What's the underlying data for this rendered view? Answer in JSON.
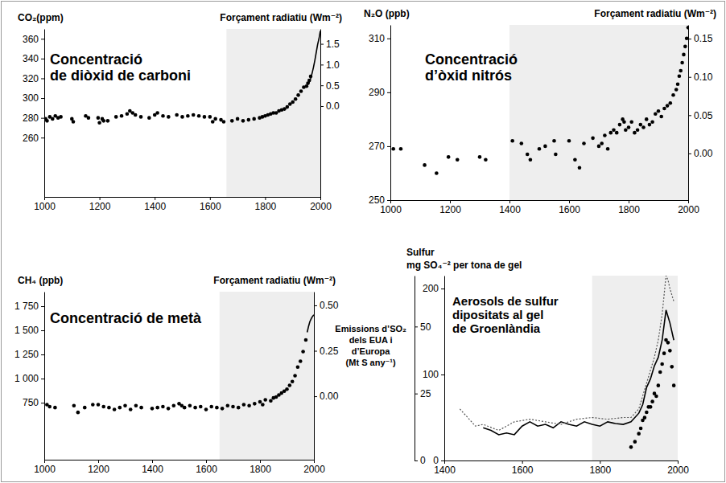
{
  "chart_data": [
    {
      "type": "scatter",
      "title": "Concentració\nde diòxid de carboni",
      "ylabel": "CO₂(ppm)",
      "y2label": "Forçament radiatiu (Wm⁻²)",
      "xlim": [
        1000,
        2000
      ],
      "xticks": [
        1000,
        1200,
        1400,
        1600,
        1800,
        2000
      ],
      "ylim": [
        200,
        370
      ],
      "yticks": [
        260,
        280,
        300,
        320,
        340,
        360
      ],
      "y2lim": [
        -2.19,
        1.86
      ],
      "y2ticks": [
        {
          "value": 0,
          "label": "0.0"
        },
        {
          "value": 0.5,
          "label": "0.5"
        },
        {
          "value": 1,
          "label": "1.0"
        },
        {
          "value": 1.5,
          "label": "1.5"
        }
      ],
      "series": [
        {
          "type": "scatter",
          "marker": "circle",
          "color": "#000000",
          "x": [
            1005,
            1010,
            1020,
            1030,
            1040,
            1050,
            1060,
            1100,
            1105,
            1150,
            1160,
            1195,
            1200,
            1210,
            1215,
            1230,
            1260,
            1280,
            1300,
            1310,
            1320,
            1330,
            1350,
            1380,
            1400,
            1410,
            1430,
            1450,
            1480,
            1500,
            1520,
            1540,
            1560,
            1580,
            1600,
            1610,
            1620,
            1640,
            1650,
            1680,
            1700,
            1720,
            1740,
            1760,
            1780,
            1790,
            1800,
            1810,
            1820,
            1830,
            1840,
            1850,
            1860,
            1870,
            1880,
            1890,
            1900,
            1910,
            1920,
            1930,
            1940,
            1950,
            1955,
            1960,
            1965
          ],
          "values": [
            279,
            277,
            281,
            279,
            282,
            280,
            281,
            279,
            276,
            282,
            280,
            280,
            275,
            279,
            277,
            277,
            281,
            282,
            284,
            287,
            285,
            283,
            281,
            280,
            283,
            285,
            282,
            281,
            283,
            281,
            282,
            283,
            282,
            281,
            281,
            276,
            279,
            278,
            276,
            277,
            279,
            277,
            278,
            279,
            280,
            281,
            282,
            283,
            284,
            285,
            285,
            287,
            288,
            289,
            291,
            294,
            296,
            299,
            303,
            307,
            311,
            312,
            315,
            318,
            322
          ]
        },
        {
          "type": "line",
          "line_style": "solid",
          "color": "#000000",
          "x": [
            1958,
            1965,
            1970,
            1975,
            1980,
            1985,
            1990,
            1995,
            2000
          ],
          "values": [
            315,
            320,
            325,
            331,
            338,
            346,
            354,
            360,
            368
          ]
        }
      ]
    },
    {
      "type": "scatter",
      "title": "Concentració\nd’òxid nitrós",
      "ylabel": "N₂O (ppb)",
      "y2label": "Forçament radiatiu (Wm⁻²)",
      "xlim": [
        1000,
        2000
      ],
      "xticks": [
        1000,
        1200,
        1400,
        1600,
        1800,
        2000
      ],
      "ylim": [
        250,
        315
      ],
      "yticks": [
        250,
        270,
        290,
        310
      ],
      "y2lim": [
        -0.061,
        0.168
      ],
      "y2ticks": [
        {
          "value": 0,
          "label": "0.00"
        },
        {
          "value": 0.05,
          "label": "0.05"
        },
        {
          "value": 0.1,
          "label": "0.10"
        },
        {
          "value": 0.15,
          "label": "0.15"
        }
      ],
      "series": [
        {
          "type": "scatter",
          "marker": "circle",
          "color": "#000000",
          "x": [
            1010,
            1035,
            1115,
            1155,
            1195,
            1225,
            1300,
            1320,
            1410,
            1440,
            1460,
            1470,
            1500,
            1520,
            1550,
            1555,
            1600,
            1620,
            1635,
            1650,
            1680,
            1700,
            1710,
            1720,
            1730,
            1740,
            1750,
            1760,
            1770,
            1780,
            1785,
            1790,
            1800,
            1810,
            1820,
            1830,
            1840,
            1850,
            1860,
            1870,
            1880,
            1890,
            1900,
            1910,
            1920,
            1930,
            1940,
            1950,
            1960,
            1965,
            1970,
            1975,
            1980,
            1985,
            1990,
            1995,
            2000
          ],
          "values": [
            269,
            269,
            263,
            260,
            266,
            265,
            266,
            265,
            272,
            271,
            267,
            265,
            269,
            270,
            272,
            267,
            272,
            265,
            262,
            271,
            273,
            270,
            271,
            274,
            269,
            275,
            276,
            275,
            278,
            280,
            279,
            276,
            277,
            279,
            275,
            276,
            278,
            277,
            280,
            278,
            279,
            282,
            283,
            281,
            284,
            285,
            286,
            289,
            291,
            293,
            296,
            298,
            301,
            304,
            307,
            310,
            314
          ]
        }
      ]
    },
    {
      "type": "scatter",
      "title": "Concentració de metà",
      "ylabel": "CH₄ (ppb)",
      "y2label": "Forçament radiatiu (Wm⁻²)",
      "xlim": [
        1000,
        2000
      ],
      "xticks": [
        1000,
        1200,
        1400,
        1600,
        1800,
        2000
      ],
      "ylim": [
        160,
        1900
      ],
      "yticks": [
        750,
        {
          "value": 1000,
          "label": "1 000"
        },
        {
          "value": 1250,
          "label": "1 250"
        },
        {
          "value": 1500,
          "label": "1 500"
        },
        {
          "value": 1750,
          "label": "1 750"
        }
      ],
      "y2lim": [
        -0.349,
        0.575
      ],
      "y2ticks": [
        {
          "value": 0,
          "label": "0.00"
        },
        {
          "value": 0.25,
          "label": "0.25"
        },
        {
          "value": 0.5,
          "label": "0.50"
        }
      ],
      "series": [
        {
          "type": "scatter",
          "marker": "circle",
          "color": "#000000",
          "x": [
            1010,
            1020,
            1040,
            1110,
            1125,
            1150,
            1180,
            1200,
            1220,
            1240,
            1260,
            1280,
            1300,
            1320,
            1340,
            1360,
            1400,
            1420,
            1440,
            1460,
            1480,
            1500,
            1510,
            1520,
            1540,
            1560,
            1580,
            1600,
            1620,
            1640,
            1660,
            1680,
            1700,
            1720,
            1740,
            1760,
            1780,
            1800,
            1810,
            1820,
            1840,
            1850,
            1860,
            1870,
            1880,
            1890,
            1900,
            1910,
            1920,
            1930,
            1940,
            1950,
            1960,
            1970
          ],
          "values": [
            730,
            710,
            700,
            720,
            650,
            700,
            730,
            730,
            710,
            700,
            680,
            700,
            720,
            680,
            720,
            700,
            690,
            700,
            710,
            690,
            720,
            740,
            720,
            700,
            720,
            700,
            710,
            680,
            710,
            700,
            690,
            720,
            710,
            700,
            730,
            720,
            740,
            760,
            730,
            780,
            770,
            800,
            810,
            830,
            850,
            870,
            890,
            930,
            970,
            1030,
            1120,
            1180,
            1280,
            1400
          ]
        },
        {
          "type": "line",
          "line_style": "solid",
          "color": "#000000",
          "x": [
            1975,
            1980,
            1985,
            1990,
            1995,
            2000
          ],
          "values": [
            1480,
            1540,
            1590,
            1620,
            1645,
            1660
          ]
        }
      ]
    },
    {
      "type": "line",
      "title": "Aerosols de sulfur\ndipositats al gel\nde Groenlàndia",
      "ylabel": "Sulfur\nmg SO₄⁻² per tona de gel",
      "y2label": "Emissions d’SO₂\ndels EUA i\nd’Europa\n(Mt S any⁻¹)",
      "xlim": [
        1400,
        2000
      ],
      "xticks": [
        1400,
        1600,
        1800,
        2000
      ],
      "ylim": [
        0,
        215
      ],
      "yticks": [
        0,
        100,
        200
      ],
      "y2lim": [
        0,
        69
      ],
      "y2ticks": [
        0,
        25,
        50
      ],
      "series": [
        {
          "type": "line",
          "line_style": "solid",
          "color": "#000000",
          "x": [
            1500,
            1520,
            1540,
            1560,
            1580,
            1600,
            1620,
            1640,
            1660,
            1680,
            1700,
            1720,
            1740,
            1760,
            1780,
            1800,
            1820,
            1840,
            1860,
            1880,
            1900,
            1910,
            1920,
            1930,
            1940,
            1950,
            1960,
            1970,
            1980,
            1990
          ],
          "values": [
            38,
            35,
            30,
            32,
            30,
            40,
            45,
            40,
            42,
            38,
            45,
            42,
            40,
            45,
            42,
            40,
            45,
            43,
            42,
            45,
            55,
            65,
            85,
            95,
            110,
            120,
            140,
            175,
            160,
            140
          ]
        },
        {
          "type": "line",
          "line_style": "dotted",
          "color": "#555555",
          "x": [
            1440,
            1460,
            1480,
            1500,
            1540,
            1580,
            1620,
            1660,
            1700,
            1740,
            1780,
            1820,
            1860,
            1880,
            1900,
            1920,
            1940,
            1950,
            1960,
            1970,
            1975,
            1980,
            1990
          ],
          "values": [
            60,
            50,
            40,
            42,
            35,
            45,
            48,
            45,
            42,
            48,
            50,
            48,
            50,
            50,
            60,
            90,
            120,
            140,
            170,
            215,
            210,
            200,
            185
          ]
        },
        {
          "type": "scatter",
          "marker": "circle",
          "color": "#000000",
          "axis": "y2",
          "x": [
            1880,
            1890,
            1900,
            1905,
            1910,
            1915,
            1920,
            1925,
            1930,
            1935,
            1940,
            1945,
            1950,
            1955,
            1960,
            1965,
            1970,
            1975,
            1980,
            1985,
            1990
          ],
          "values": [
            5,
            7,
            10,
            12,
            15,
            16,
            18,
            20,
            20,
            22,
            25,
            24,
            28,
            33,
            36,
            40,
            45,
            44,
            41,
            35,
            28
          ]
        }
      ]
    }
  ]
}
